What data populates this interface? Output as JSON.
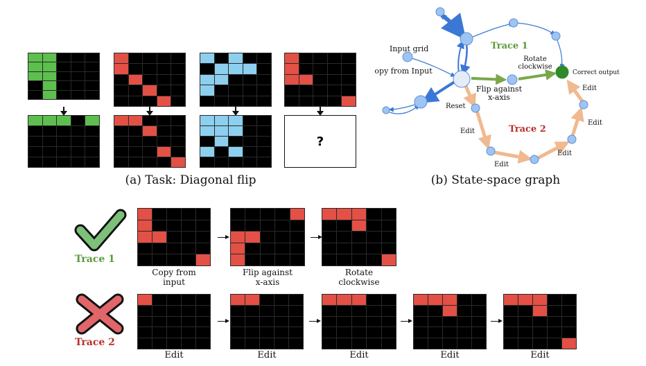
{
  "colors": {
    "green": "#5cbf4e",
    "red": "#e35045",
    "blue": "#8dcfef",
    "black": "#000000",
    "graph_blue": "#3b78d6",
    "node_blue": "#9ec4f2",
    "green_edge": "#78a84a",
    "orange_edge": "#f0b990",
    "correct_node": "#2f8a2a",
    "trace1_text": "#5a9a3a",
    "trace2_text": "#b8302a"
  },
  "panel_a": {
    "caption": "(a) Task: Diagonal flip",
    "unknown_symbol": "?",
    "pairs": [
      {
        "color": "green",
        "input": [
          [
            1,
            1,
            0,
            0,
            0
          ],
          [
            1,
            1,
            0,
            0,
            0
          ],
          [
            1,
            1,
            0,
            0,
            0
          ],
          [
            0,
            1,
            0,
            0,
            0
          ],
          [
            0,
            1,
            0,
            0,
            0
          ]
        ],
        "output": [
          [
            1,
            1,
            1,
            0,
            1
          ],
          [
            0,
            0,
            0,
            0,
            0
          ],
          [
            0,
            0,
            0,
            0,
            0
          ],
          [
            0,
            0,
            0,
            0,
            0
          ],
          [
            0,
            0,
            0,
            0,
            0
          ]
        ]
      },
      {
        "color": "red",
        "input": [
          [
            1,
            0,
            0,
            0,
            0
          ],
          [
            1,
            0,
            0,
            0,
            0
          ],
          [
            0,
            1,
            0,
            0,
            0
          ],
          [
            0,
            0,
            1,
            0,
            0
          ],
          [
            0,
            0,
            0,
            1,
            0
          ]
        ],
        "output": [
          [
            1,
            1,
            0,
            0,
            0
          ],
          [
            0,
            0,
            1,
            0,
            0
          ],
          [
            0,
            0,
            0,
            0,
            0
          ],
          [
            0,
            0,
            0,
            1,
            0
          ],
          [
            0,
            0,
            0,
            0,
            1
          ]
        ]
      },
      {
        "color": "blue",
        "input": [
          [
            1,
            0,
            1,
            0,
            0
          ],
          [
            0,
            1,
            1,
            1,
            0
          ],
          [
            1,
            1,
            0,
            0,
            0
          ],
          [
            1,
            0,
            0,
            0,
            0
          ],
          [
            0,
            0,
            0,
            0,
            0
          ]
        ],
        "output": [
          [
            1,
            1,
            1,
            0,
            0
          ],
          [
            1,
            1,
            1,
            0,
            0
          ],
          [
            0,
            1,
            0,
            0,
            0
          ],
          [
            1,
            0,
            1,
            0,
            0
          ],
          [
            0,
            0,
            0,
            0,
            0
          ]
        ]
      },
      {
        "color": "red",
        "input": [
          [
            1,
            0,
            0,
            0,
            0
          ],
          [
            1,
            0,
            0,
            0,
            0
          ],
          [
            1,
            1,
            0,
            0,
            0
          ],
          [
            0,
            0,
            0,
            0,
            0
          ],
          [
            0,
            0,
            0,
            0,
            1
          ]
        ],
        "output": null
      }
    ]
  },
  "panel_b": {
    "caption": "(b) State-space graph",
    "labels": {
      "input_grid": "Input grid",
      "copy_from_input": "Copy from Input",
      "trace1": "Trace 1",
      "rotate_clockwise": [
        "Rotate",
        "clockwise"
      ],
      "correct_output": "Correct output",
      "flip_x_axis": [
        "Flip against",
        "x-axis"
      ],
      "reset": "Reset",
      "trace2": "Trace 2",
      "edit": "Edit"
    }
  },
  "panel_c": {
    "trace1_label": "Trace 1",
    "trace2_label": "Trace 2",
    "trace1_steps": [
      {
        "label": [
          "Copy from",
          "input"
        ],
        "grid": [
          [
            1,
            0,
            0,
            0,
            0
          ],
          [
            1,
            0,
            0,
            0,
            0
          ],
          [
            1,
            1,
            0,
            0,
            0
          ],
          [
            0,
            0,
            0,
            0,
            0
          ],
          [
            0,
            0,
            0,
            0,
            1
          ]
        ]
      },
      {
        "label": [
          "Flip against",
          "x-axis"
        ],
        "grid": [
          [
            0,
            0,
            0,
            0,
            1
          ],
          [
            0,
            0,
            0,
            0,
            0
          ],
          [
            1,
            1,
            0,
            0,
            0
          ],
          [
            1,
            0,
            0,
            0,
            0
          ],
          [
            1,
            0,
            0,
            0,
            0
          ]
        ]
      },
      {
        "label": [
          "Rotate",
          "clockwise"
        ],
        "grid": [
          [
            1,
            1,
            1,
            0,
            0
          ],
          [
            0,
            0,
            1,
            0,
            0
          ],
          [
            0,
            0,
            0,
            0,
            0
          ],
          [
            0,
            0,
            0,
            0,
            0
          ],
          [
            0,
            0,
            0,
            0,
            1
          ]
        ]
      }
    ],
    "trace2_steps": [
      {
        "label": "Edit",
        "grid": [
          [
            1,
            0,
            0,
            0,
            0
          ],
          [
            0,
            0,
            0,
            0,
            0
          ],
          [
            0,
            0,
            0,
            0,
            0
          ],
          [
            0,
            0,
            0,
            0,
            0
          ],
          [
            0,
            0,
            0,
            0,
            0
          ]
        ]
      },
      {
        "label": "Edit",
        "grid": [
          [
            1,
            1,
            0,
            0,
            0
          ],
          [
            0,
            0,
            0,
            0,
            0
          ],
          [
            0,
            0,
            0,
            0,
            0
          ],
          [
            0,
            0,
            0,
            0,
            0
          ],
          [
            0,
            0,
            0,
            0,
            0
          ]
        ]
      },
      {
        "label": "Edit",
        "grid": [
          [
            1,
            1,
            1,
            0,
            0
          ],
          [
            0,
            0,
            0,
            0,
            0
          ],
          [
            0,
            0,
            0,
            0,
            0
          ],
          [
            0,
            0,
            0,
            0,
            0
          ],
          [
            0,
            0,
            0,
            0,
            0
          ]
        ]
      },
      {
        "label": "Edit",
        "grid": [
          [
            1,
            1,
            1,
            0,
            0
          ],
          [
            0,
            0,
            1,
            0,
            0
          ],
          [
            0,
            0,
            0,
            0,
            0
          ],
          [
            0,
            0,
            0,
            0,
            0
          ],
          [
            0,
            0,
            0,
            0,
            0
          ]
        ]
      },
      {
        "label": "Edit",
        "grid": [
          [
            1,
            1,
            1,
            0,
            0
          ],
          [
            0,
            0,
            1,
            0,
            0
          ],
          [
            0,
            0,
            0,
            0,
            0
          ],
          [
            0,
            0,
            0,
            0,
            0
          ],
          [
            0,
            0,
            0,
            0,
            1
          ]
        ]
      }
    ]
  }
}
